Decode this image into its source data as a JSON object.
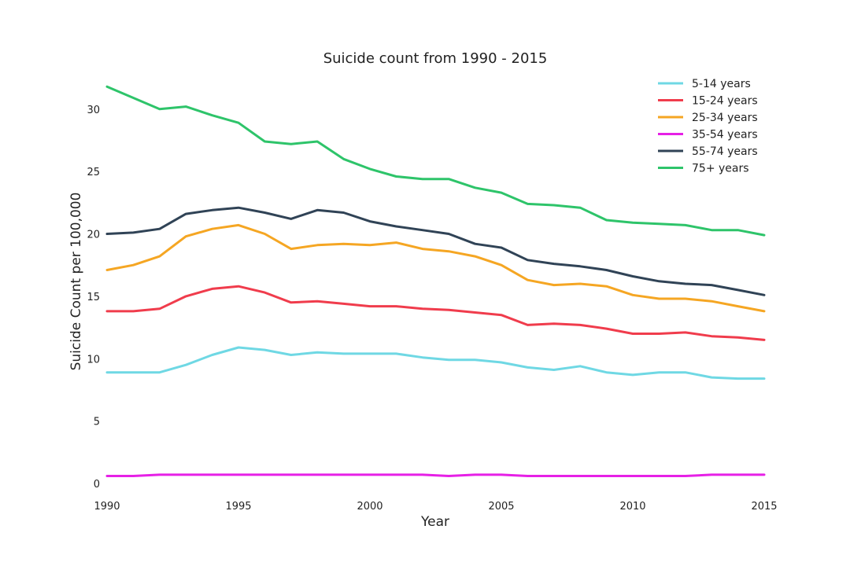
{
  "chart_data": {
    "type": "line",
    "title": "Suicide count from 1990 - 2015",
    "xlabel": "Year",
    "ylabel": "Suicide Count per 100,000",
    "xlim": [
      1990,
      2015
    ],
    "ylim": [
      0,
      32
    ],
    "xticks": [
      1990,
      1995,
      2000,
      2005,
      2010,
      2015
    ],
    "yticks": [
      0,
      5,
      10,
      15,
      20,
      25,
      30
    ],
    "grid": false,
    "legend_position": "top-right",
    "x": [
      1990,
      1991,
      1992,
      1993,
      1994,
      1995,
      1996,
      1997,
      1998,
      1999,
      2000,
      2001,
      2002,
      2003,
      2004,
      2005,
      2006,
      2007,
      2008,
      2009,
      2010,
      2011,
      2012,
      2013,
      2014,
      2015
    ],
    "series": [
      {
        "name": "5-14 years",
        "color": "#6fd8e4",
        "values": [
          8.9,
          8.9,
          8.9,
          9.5,
          10.3,
          10.9,
          10.7,
          10.3,
          10.5,
          10.4,
          10.4,
          10.4,
          10.1,
          9.9,
          9.9,
          9.7,
          9.3,
          9.1,
          9.4,
          8.9,
          8.7,
          8.9,
          8.9,
          8.5,
          8.4,
          8.4
        ]
      },
      {
        "name": "15-24 years",
        "color": "#f03c4c",
        "values": [
          13.8,
          13.8,
          14.0,
          15.0,
          15.6,
          15.8,
          15.3,
          14.5,
          14.6,
          14.4,
          14.2,
          14.2,
          14.0,
          13.9,
          13.7,
          13.5,
          12.7,
          12.8,
          12.7,
          12.4,
          12.0,
          12.0,
          12.1,
          11.8,
          11.7,
          11.5
        ]
      },
      {
        "name": "25-34 years",
        "color": "#f5a623",
        "values": [
          17.1,
          17.5,
          18.2,
          19.8,
          20.4,
          20.7,
          20.0,
          18.8,
          19.1,
          19.2,
          19.1,
          19.3,
          18.8,
          18.6,
          18.2,
          17.5,
          16.3,
          15.9,
          16.0,
          15.8,
          15.1,
          14.8,
          14.8,
          14.6,
          14.2,
          13.8
        ]
      },
      {
        "name": "35-54 years",
        "color": "#e620e6",
        "values": [
          0.6,
          0.6,
          0.7,
          0.7,
          0.7,
          0.7,
          0.7,
          0.7,
          0.7,
          0.7,
          0.7,
          0.7,
          0.7,
          0.6,
          0.7,
          0.7,
          0.6,
          0.6,
          0.6,
          0.6,
          0.6,
          0.6,
          0.6,
          0.7,
          0.7,
          0.7
        ]
      },
      {
        "name": "55-74 years",
        "color": "#304356",
        "values": [
          20.0,
          20.1,
          20.4,
          21.6,
          21.9,
          22.1,
          21.7,
          21.2,
          21.9,
          21.7,
          21.0,
          20.6,
          20.3,
          20.0,
          19.2,
          18.9,
          17.9,
          17.6,
          17.4,
          17.1,
          16.6,
          16.2,
          16.0,
          15.9,
          15.5,
          15.1
        ]
      },
      {
        "name": "75+ years",
        "color": "#2ec46a",
        "values": [
          31.8,
          30.9,
          30.0,
          30.2,
          29.5,
          28.9,
          27.4,
          27.2,
          27.4,
          26.0,
          25.2,
          24.6,
          24.4,
          24.4,
          23.7,
          23.3,
          22.4,
          22.3,
          22.1,
          21.1,
          20.9,
          20.8,
          20.7,
          20.3,
          20.3,
          19.9
        ]
      }
    ]
  }
}
